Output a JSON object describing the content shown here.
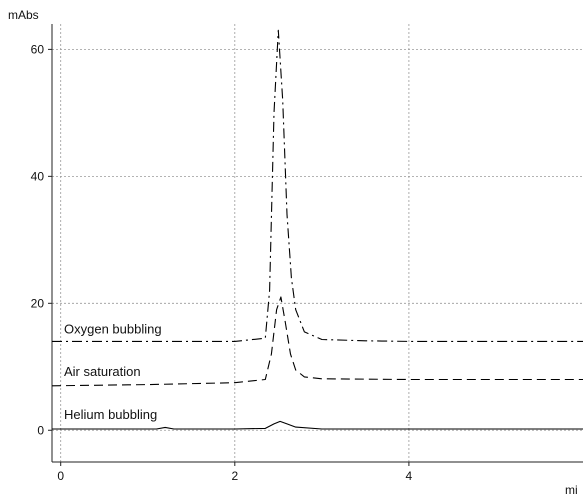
{
  "chart_data": {
    "type": "line",
    "ylabel": "mAbs",
    "xlabel": "mi",
    "xlim": [
      -0.1,
      6.0
    ],
    "ylim": [
      -5,
      64
    ],
    "x_ticks": [
      0,
      2,
      4
    ],
    "y_ticks": [
      0,
      20,
      40,
      60
    ],
    "grid": true,
    "legend": "inline-labels",
    "series": [
      {
        "name": "Oxygen bubbling",
        "line_style": "dash-dot",
        "x": [
          -0.1,
          1.0,
          2.0,
          2.35,
          2.4,
          2.45,
          2.5,
          2.55,
          2.6,
          2.65,
          2.7,
          2.8,
          3.0,
          3.5,
          4.0,
          6.0
        ],
        "y": [
          14,
          14,
          14,
          14.5,
          22,
          50,
          63,
          52,
          34,
          24,
          19,
          15.5,
          14.3,
          14.1,
          14,
          14
        ]
      },
      {
        "name": "Air saturation",
        "line_style": "dash",
        "x": [
          -0.1,
          1.0,
          2.0,
          2.35,
          2.42,
          2.48,
          2.53,
          2.58,
          2.64,
          2.7,
          2.8,
          3.0,
          4.0,
          6.0
        ],
        "y": [
          7,
          7.2,
          7.5,
          8,
          12,
          19,
          21,
          17,
          12,
          9.5,
          8.4,
          8.1,
          8,
          8
        ]
      },
      {
        "name": "Helium bubbling",
        "line_style": "solid",
        "x": [
          -0.1,
          1.1,
          1.2,
          1.3,
          2.0,
          2.35,
          2.45,
          2.52,
          2.6,
          2.7,
          3.0,
          4.0,
          6.0
        ],
        "y": [
          0.2,
          0.2,
          0.45,
          0.2,
          0.2,
          0.3,
          1.0,
          1.4,
          1.0,
          0.5,
          0.2,
          0.2,
          0.2
        ]
      }
    ]
  }
}
